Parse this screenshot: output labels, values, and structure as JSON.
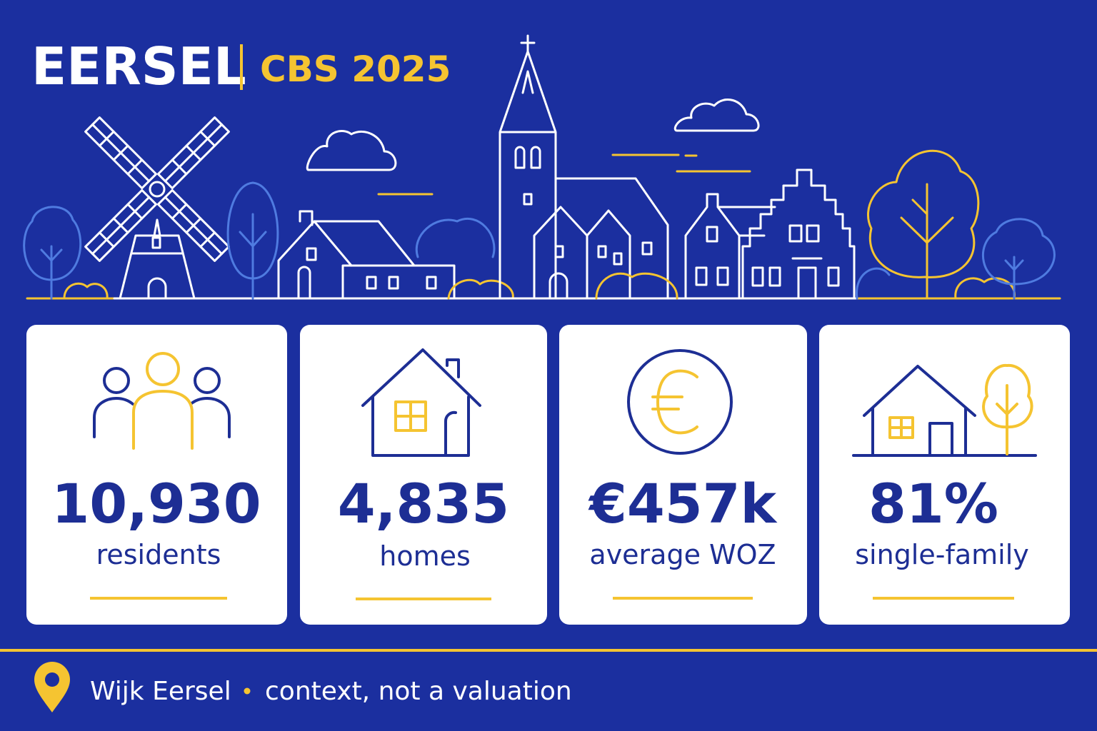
{
  "header": {
    "title": "EERSEL",
    "subtitle": "CBS 2025"
  },
  "stats": [
    {
      "value": "10,930",
      "label": "residents"
    },
    {
      "value": "4,835",
      "label": "homes"
    },
    {
      "value": "€457k",
      "label": "average WOZ"
    },
    {
      "value": "81%",
      "label": "single-family"
    }
  ],
  "footer": {
    "location": "Wijk Eersel",
    "note": "context, not a valuation"
  }
}
